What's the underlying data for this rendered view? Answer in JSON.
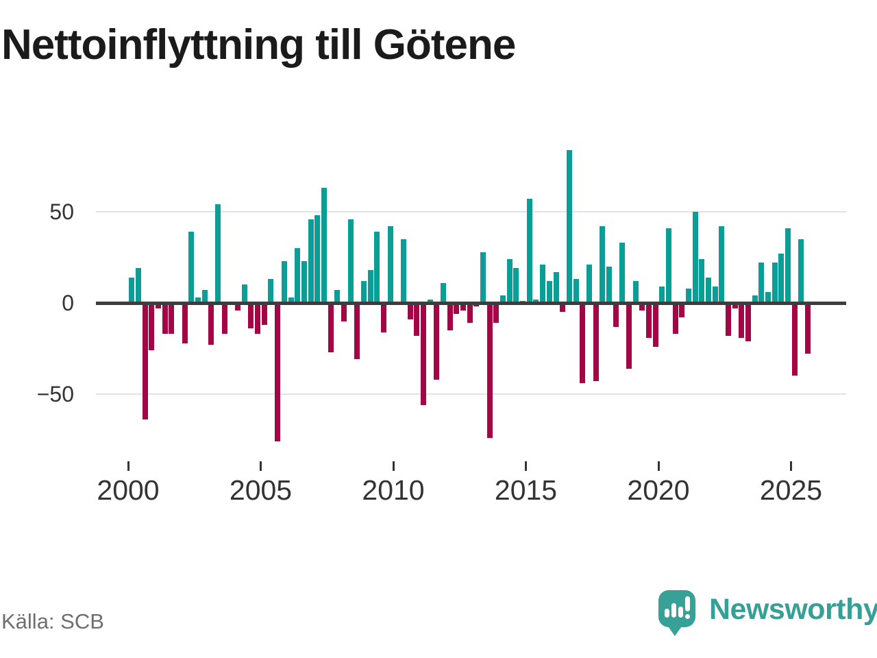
{
  "title": "Nettoinflyttning till Götene",
  "source": "Källa: SCB",
  "brand": {
    "name": "Newsworthy",
    "color": "#38a197"
  },
  "chart_data": {
    "type": "bar",
    "title": "Nettoinflyttning till Götene",
    "xlabel": "",
    "ylabel": "",
    "ylim": [
      -82,
      93
    ],
    "grid": true,
    "legend": false,
    "positive_color": "#0a9e96",
    "negative_color": "#a40545",
    "grid_color": "#e2e2e2",
    "zero_axis_color": "#3d3d3d",
    "tick_label_color": "#333333",
    "y_ticks": [
      {
        "label": "50",
        "value": 50
      },
      {
        "label": "0",
        "value": 0
      },
      {
        "label": "−50",
        "value": -50
      }
    ],
    "x_ticks": [
      {
        "label": "2000",
        "year": 2000
      },
      {
        "label": "2005",
        "year": 2005
      },
      {
        "label": "2010",
        "year": 2010
      },
      {
        "label": "2015",
        "year": 2015
      },
      {
        "label": "2020",
        "year": 2020
      },
      {
        "label": "2025",
        "year": 2025
      }
    ],
    "quarters": [
      "2000Q1",
      "2000Q2",
      "2000Q3",
      "2000Q4",
      "2001Q1",
      "2001Q2",
      "2001Q3",
      "2001Q4",
      "2002Q1",
      "2002Q2",
      "2002Q3",
      "2002Q4",
      "2003Q1",
      "2003Q2",
      "2003Q3",
      "2003Q4",
      "2004Q1",
      "2004Q2",
      "2004Q3",
      "2004Q4",
      "2005Q1",
      "2005Q2",
      "2005Q3",
      "2005Q4",
      "2006Q1",
      "2006Q2",
      "2006Q3",
      "2006Q4",
      "2007Q1",
      "2007Q2",
      "2007Q3",
      "2007Q4",
      "2008Q1",
      "2008Q2",
      "2008Q3",
      "2008Q4",
      "2009Q1",
      "2009Q2",
      "2009Q3",
      "2009Q4",
      "2010Q1",
      "2010Q2",
      "2010Q3",
      "2010Q4",
      "2011Q1",
      "2011Q2",
      "2011Q3",
      "2011Q4",
      "2012Q1",
      "2012Q2",
      "2012Q3",
      "2012Q4",
      "2013Q1",
      "2013Q2",
      "2013Q3",
      "2013Q4",
      "2014Q1",
      "2014Q2",
      "2014Q3",
      "2014Q4",
      "2015Q1",
      "2015Q2",
      "2015Q3",
      "2015Q4",
      "2016Q1",
      "2016Q2",
      "2016Q3",
      "2016Q4",
      "2017Q1",
      "2017Q2",
      "2017Q3",
      "2017Q4",
      "2018Q1",
      "2018Q2",
      "2018Q3",
      "2018Q4",
      "2019Q1",
      "2019Q2",
      "2019Q3",
      "2019Q4",
      "2020Q1",
      "2020Q2",
      "2020Q3",
      "2020Q4",
      "2021Q1",
      "2021Q2",
      "2021Q3",
      "2021Q4",
      "2022Q1",
      "2022Q2",
      "2022Q3",
      "2022Q4",
      "2023Q1",
      "2023Q2",
      "2023Q3",
      "2023Q4",
      "2024Q1",
      "2024Q2",
      "2024Q3",
      "2024Q4",
      "2025Q1",
      "2025Q2",
      "2025Q3"
    ],
    "values": [
      14,
      19,
      -64,
      -26,
      -3,
      -17,
      -17,
      0,
      -22,
      39,
      3,
      7,
      -23,
      54,
      -17,
      0,
      -4,
      10,
      -14,
      -17,
      -12,
      13,
      -76,
      23,
      3,
      30,
      23,
      46,
      48,
      63,
      -27,
      7,
      -10,
      46,
      -31,
      12,
      18,
      39,
      -16,
      42,
      0,
      35,
      -9,
      -18,
      -56,
      2,
      -42,
      11,
      -15,
      -6,
      -4,
      -11,
      -2,
      28,
      -74,
      -11,
      4,
      24,
      19,
      1,
      57,
      2,
      21,
      12,
      17,
      -5,
      84,
      13,
      -44,
      21,
      -43,
      42,
      20,
      -13,
      33,
      -36,
      12,
      -4,
      -19,
      -24,
      9,
      41,
      -17,
      -8,
      8,
      50,
      24,
      14,
      9,
      42,
      -18,
      -3,
      -19,
      -21,
      4,
      22,
      6,
      22,
      27,
      41,
      -40,
      35,
      -28
    ]
  }
}
